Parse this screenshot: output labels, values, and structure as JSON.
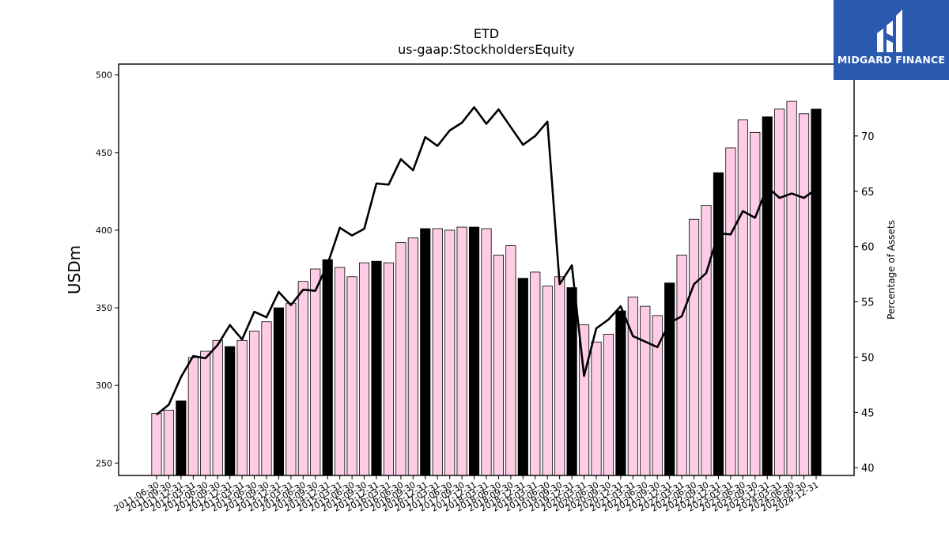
{
  "header": {
    "title": "ETD",
    "subtitle": "us-gaap:StockholdersEquity"
  },
  "logo": {
    "text": "MIDGARD FINANCE",
    "background_color": "#2a59b0"
  },
  "chart_data": {
    "type": "bar",
    "categories": [
      "2011-06-30",
      "2011-09-30",
      "2011-12-31",
      "2012-03-31",
      "2012-06-30",
      "2012-09-30",
      "2012-12-31",
      "2013-03-31",
      "2013-06-30",
      "2013-09-30",
      "2013-12-31",
      "2014-03-31",
      "2014-06-30",
      "2014-09-30",
      "2014-12-31",
      "2015-03-31",
      "2015-06-30",
      "2015-09-30",
      "2015-12-31",
      "2016-03-31",
      "2016-06-30",
      "2016-09-30",
      "2016-12-31",
      "2017-03-31",
      "2017-06-30",
      "2017-09-30",
      "2017-12-31",
      "2018-03-31",
      "2018-06-30",
      "2018-09-30",
      "2018-12-31",
      "2019-03-31",
      "2019-06-30",
      "2019-09-30",
      "2019-12-31",
      "2020-03-31",
      "2020-06-30",
      "2020-09-30",
      "2020-12-31",
      "2021-03-31",
      "2021-06-30",
      "2021-09-30",
      "2021-12-31",
      "2022-03-31",
      "2022-06-30",
      "2022-09-30",
      "2022-12-31",
      "2023-03-31",
      "2023-06-30",
      "2023-09-30",
      "2023-12-31",
      "2024-03-31",
      "2024-06-30",
      "2024-09-30",
      "2024-12-31"
    ],
    "tick_labels": [
      "2011-06-30",
      "2011-09-30",
      "2011-12-31",
      "2012-03-31",
      "2012-06-30",
      "2012-09-30",
      "2012-12-31",
      "2013-03-31",
      "2013-06-30",
      "2013-09-30",
      "2013-12-31",
      "2014-03-31",
      "2014-06-30",
      "2014-09-30",
      "2014-12-31",
      "2015-03-31",
      "2015-06-30",
      "2015-09-30",
      "2015-12-31",
      "2016-03-31",
      "2016-06-30",
      "2016-09-30",
      "2016-12-31",
      "2017-03-31",
      "2017-06-30",
      "2017-09-30",
      "2017-12-31",
      "2018-03-31",
      "2018-06-30",
      "2018-09-30",
      "2018-12-31",
      "2019-03-31",
      "2019-06-30",
      "2019-09-30",
      "2019-12-31",
      "2020-03-31",
      "2020-06-30",
      "2020-09-30",
      "2020-12-31",
      "2021-03-31",
      "2021-06-30",
      "2021-09-30",
      "2021-12-31",
      "2022-03-31",
      "2022-06-30",
      "2022-09-30",
      "2022-12-31",
      "2023-03-31",
      "2023-06-30",
      "2023-09-30",
      "2023-12-31",
      "2024-03-31",
      "2024-06-30",
      "2024-09-30",
      "2024-12-31"
    ],
    "series": [
      {
        "axis": "left",
        "kind": "bar",
        "values": [
          282,
          284,
          290,
          318,
          322,
          329,
          325,
          329,
          335,
          341,
          350,
          353,
          367,
          375,
          381,
          376,
          370,
          379,
          380,
          379,
          392,
          395,
          401,
          401,
          400,
          402,
          402,
          401,
          384,
          390,
          369,
          373,
          364,
          370,
          363,
          339,
          328,
          333,
          348,
          357,
          351,
          345,
          366,
          384,
          407,
          416,
          437,
          453,
          471,
          463,
          473,
          478,
          483,
          475,
          478
        ],
        "highlight": [
          false,
          false,
          true,
          false,
          false,
          false,
          true,
          false,
          false,
          false,
          true,
          false,
          false,
          false,
          true,
          false,
          false,
          false,
          true,
          false,
          false,
          false,
          true,
          false,
          false,
          false,
          true,
          false,
          false,
          false,
          true,
          false,
          false,
          false,
          true,
          false,
          false,
          false,
          true,
          false,
          false,
          false,
          true,
          false,
          false,
          false,
          true,
          false,
          false,
          false,
          true,
          false,
          false,
          false,
          true
        ]
      },
      {
        "axis": "right",
        "kind": "line",
        "values": [
          44.8,
          45.7,
          48.2,
          50.1,
          49.9,
          51.1,
          52.9,
          51.6,
          54.1,
          53.6,
          55.9,
          54.7,
          56.1,
          56.0,
          58.4,
          61.7,
          61.0,
          61.6,
          65.7,
          65.6,
          67.9,
          66.9,
          69.9,
          69.1,
          70.5,
          71.2,
          72.6,
          71.1,
          72.4,
          70.8,
          69.2,
          70.0,
          71.3,
          56.6,
          58.3,
          48.3,
          52.6,
          53.4,
          54.6,
          51.9,
          51.4,
          50.9,
          53.1,
          53.7,
          56.6,
          57.6,
          61.2,
          61.1,
          63.2,
          62.6,
          65.4,
          64.4,
          64.8,
          64.4,
          65.2
        ]
      }
    ],
    "ylabel": "USDm",
    "ylabel_right": "Percentage of Assets",
    "ylim": [
      242,
      507
    ],
    "ylim_right": [
      39.3,
      76.5
    ],
    "yticks": [
      250,
      300,
      350,
      400,
      450,
      500
    ],
    "yticks_right": [
      40,
      45,
      50,
      55,
      60,
      65,
      70
    ],
    "grid": false,
    "colors": {
      "bar": "#ffcce6",
      "bar_highlight": "#000000",
      "bar_edge": "#000000",
      "line": "#000000"
    }
  }
}
